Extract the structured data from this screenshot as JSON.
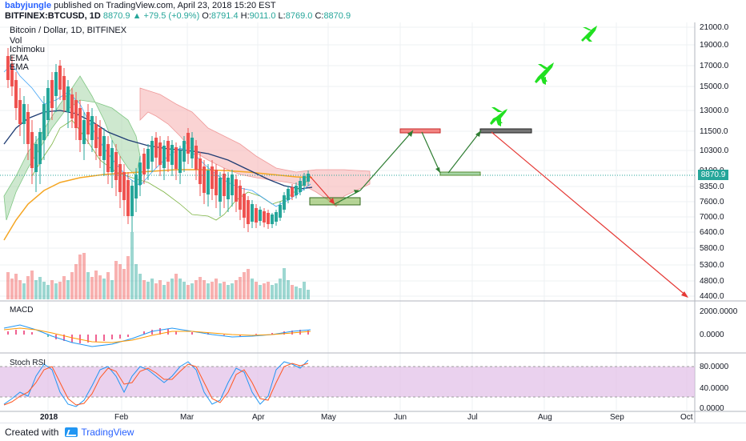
{
  "header": {
    "author": "babyjungle",
    "published_text": "published on TradingView.com, April 23, 2018 15:20 EST",
    "symbol": "BITFINEX:BTCUSD, 1D",
    "last": "8870.9",
    "change": "+79.5 (+0.9%)",
    "o_label": "O:",
    "o_val": "8791.4",
    "h_label": "H:",
    "h_val": "9011.0",
    "l_label": "L:",
    "l_val": "8769.0",
    "c_label": "C:",
    "c_val": "8870.9"
  },
  "legend": {
    "title": "Bitcoin / Dollar, 1D, BITFINEX",
    "items": [
      "Vol",
      "Ichimoku",
      "EMA",
      "EMA"
    ]
  },
  "price_axis": [
    "21000.0",
    "19000.0",
    "17000.0",
    "15000.0",
    "13000.0",
    "11500.0",
    "10300.0",
    "9100.0",
    "8350.0",
    "7600.0",
    "7000.0",
    "6400.0",
    "5800.0",
    "5300.0",
    "4800.0",
    "4400.0"
  ],
  "current_price_tag": "8870.9",
  "macd": {
    "label": "MACD",
    "axis": [
      "2000.0000",
      "0.0000"
    ]
  },
  "stoch": {
    "label": "Stoch RSI",
    "axis": [
      "80.0000",
      "40.0000",
      "0.0000"
    ]
  },
  "time_axis": [
    "2018",
    "Feb",
    "Mar",
    "Apr",
    "May",
    "Jun",
    "Jul",
    "Aug",
    "Sep",
    "Oct"
  ],
  "footer": {
    "created_with": "Created with",
    "brand": "TradingView"
  },
  "colors": {
    "up": "#26a69a",
    "down": "#ef5350",
    "ema_orange": "#f5a623",
    "ema_navy": "#1f3c73",
    "cloud_green": "#a5d6a7",
    "cloud_red": "#f8bbbb",
    "stoch_bg": "#e1bee7",
    "arrow_green": "#2e7d32",
    "arrow_red": "#e53935"
  }
}
